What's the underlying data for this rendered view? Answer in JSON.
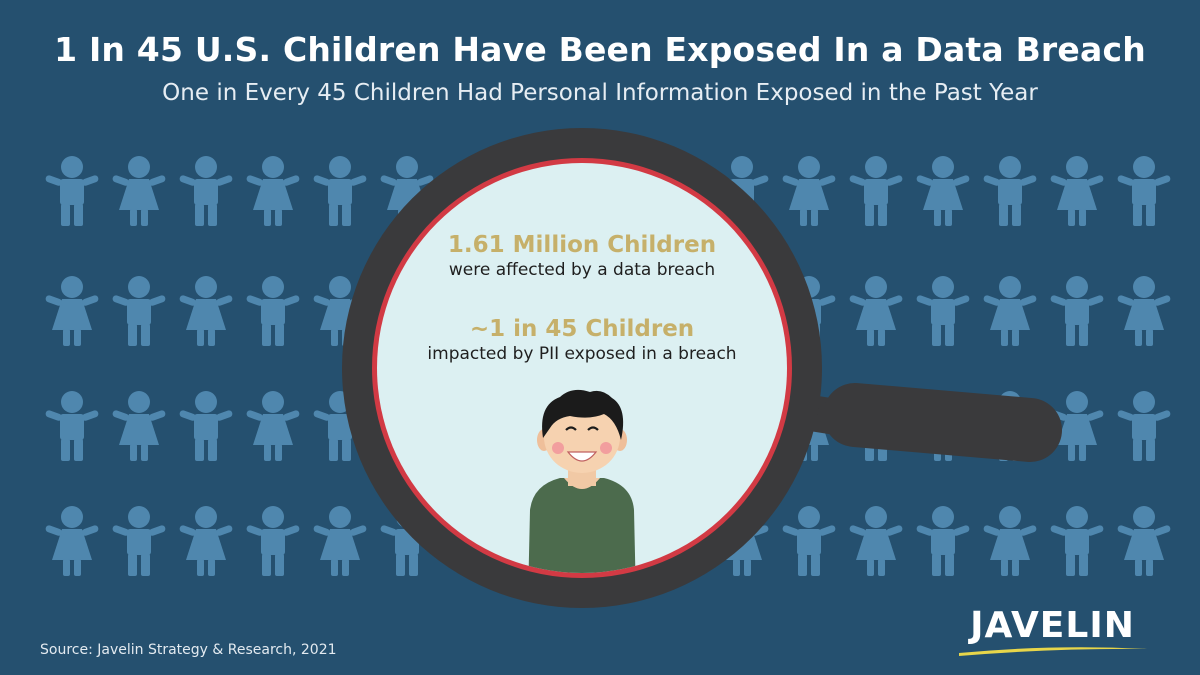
{
  "header": {
    "title": "1 In 45 U.S. Children Have Been Exposed In a Data Breach",
    "subtitle": "One in Every 45 Children Had Personal Information Exposed in the Past Year"
  },
  "stats": [
    {
      "value": "1.61 Million Children",
      "description": "were affected by a data breach"
    },
    {
      "value": "~1 in 45 Children",
      "description": "impacted by PII exposed in a breach"
    }
  ],
  "footer": {
    "source": "Source: Javelin Strategy & Research, 2021"
  },
  "logo": {
    "text": "JAVELIN"
  },
  "colors": {
    "background": "#25506f",
    "figure": "#4f87ae",
    "accent_gold": "#c6b06a",
    "lens_rim": "#d23a44",
    "lens_fill": "#dcf0f2",
    "handle": "#3a3a3c",
    "logo_swoosh": "#e8d64a"
  },
  "icons": {
    "background_figures": "child-silhouette-icon",
    "center_figure": "smiling-boy-illustration",
    "magnifier": "magnifying-glass-icon"
  }
}
